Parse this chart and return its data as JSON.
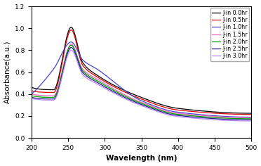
{
  "title": "",
  "xlabel": "Wavelength (nm)",
  "ylabel": "Absorbance(a.u.)",
  "xlim": [
    200,
    500
  ],
  "ylim": [
    0.0,
    1.2
  ],
  "xticks": [
    200,
    250,
    300,
    350,
    400,
    450,
    500
  ],
  "yticks": [
    0.0,
    0.2,
    0.4,
    0.6,
    0.8,
    1.0,
    1.2
  ],
  "series": [
    {
      "label": "J-in 0.0hr",
      "color": "#000000",
      "lw": 0.9,
      "val_200": 0.46,
      "val_230": 0.44,
      "val_254": 1.01,
      "val_270": 0.685,
      "val_290": 0.57,
      "val_350": 0.37,
      "val_400": 0.27,
      "val_500": 0.225
    },
    {
      "label": "J-in 0.5hr",
      "color": "#dd0000",
      "lw": 0.9,
      "val_200": 0.43,
      "val_230": 0.415,
      "val_254": 0.985,
      "val_270": 0.66,
      "val_290": 0.555,
      "val_350": 0.355,
      "val_400": 0.255,
      "val_500": 0.215
    },
    {
      "label": "J-in 1.0hr",
      "color": "#4444cc",
      "lw": 0.9,
      "val_200": 0.4,
      "val_230": 0.63,
      "val_254": 0.875,
      "val_270": 0.71,
      "val_290": 0.625,
      "val_350": 0.34,
      "val_400": 0.235,
      "val_500": 0.19
    },
    {
      "label": "J-in 1.5hr",
      "color": "#ee66bb",
      "lw": 0.9,
      "val_200": 0.4,
      "val_230": 0.385,
      "val_254": 0.855,
      "val_270": 0.625,
      "val_290": 0.535,
      "val_350": 0.325,
      "val_400": 0.225,
      "val_500": 0.185
    },
    {
      "label": "J-in 2.0hr",
      "color": "#009900",
      "lw": 0.9,
      "val_200": 0.385,
      "val_230": 0.37,
      "val_254": 0.845,
      "val_270": 0.61,
      "val_290": 0.52,
      "val_350": 0.315,
      "val_400": 0.215,
      "val_500": 0.175
    },
    {
      "label": "J-in 2.5hr",
      "color": "#222288",
      "lw": 0.9,
      "val_200": 0.37,
      "val_230": 0.355,
      "val_254": 0.825,
      "val_270": 0.595,
      "val_290": 0.505,
      "val_350": 0.305,
      "val_400": 0.205,
      "val_500": 0.165
    },
    {
      "label": "J-in 3.0hr",
      "color": "#bb88ff",
      "lw": 0.9,
      "val_200": 0.36,
      "val_230": 0.345,
      "val_254": 0.8,
      "val_270": 0.575,
      "val_290": 0.49,
      "val_350": 0.295,
      "val_400": 0.195,
      "val_500": 0.155
    }
  ],
  "background_color": "#ffffff",
  "legend_fontsize": 5.8,
  "axis_label_fontsize": 7.5,
  "tick_fontsize": 6.5
}
